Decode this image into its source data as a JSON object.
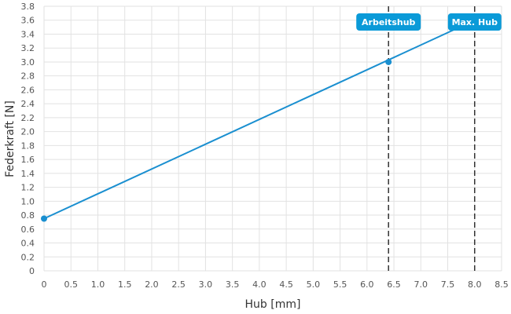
{
  "chart_data": {
    "type": "line",
    "xlabel": "Hub [mm]",
    "ylabel": "Federkraft [N]",
    "xlim": [
      0,
      8.5
    ],
    "ylim": [
      0,
      3.8
    ],
    "x_ticks": [
      "0",
      "0.5",
      "1.0",
      "1.5",
      "2.0",
      "2.5",
      "3.0",
      "3.5",
      "4.0",
      "4.5",
      "5.0",
      "5.5",
      "6.0",
      "6.5",
      "7.0",
      "7.5",
      "8.0",
      "8.5"
    ],
    "y_ticks": [
      "0",
      "0.2",
      "0.4",
      "0.6",
      "0.8",
      "1.0",
      "1.2",
      "1.4",
      "1.6",
      "1.8",
      "2.0",
      "2.2",
      "2.4",
      "2.6",
      "2.8",
      "3.0",
      "3.2",
      "3.4",
      "3.6",
      "3.8"
    ],
    "grid": true,
    "series": [
      {
        "x": [
          0,
          8.0
        ],
        "y": [
          0.75,
          3.6
        ],
        "color": "#1a8fd0"
      }
    ],
    "points": [
      {
        "x": 0,
        "y": 0.75
      },
      {
        "x": 6.4,
        "y": 3.0
      }
    ],
    "markers": [
      {
        "label": "Arbeitshub",
        "x": 6.4
      },
      {
        "label": "Max. Hub",
        "x": 8.0
      }
    ],
    "colors": {
      "line": "#1a8fd0",
      "badge": "#0a9ad8",
      "grid": "#e2e2e2",
      "marker_line": "#333333"
    }
  }
}
